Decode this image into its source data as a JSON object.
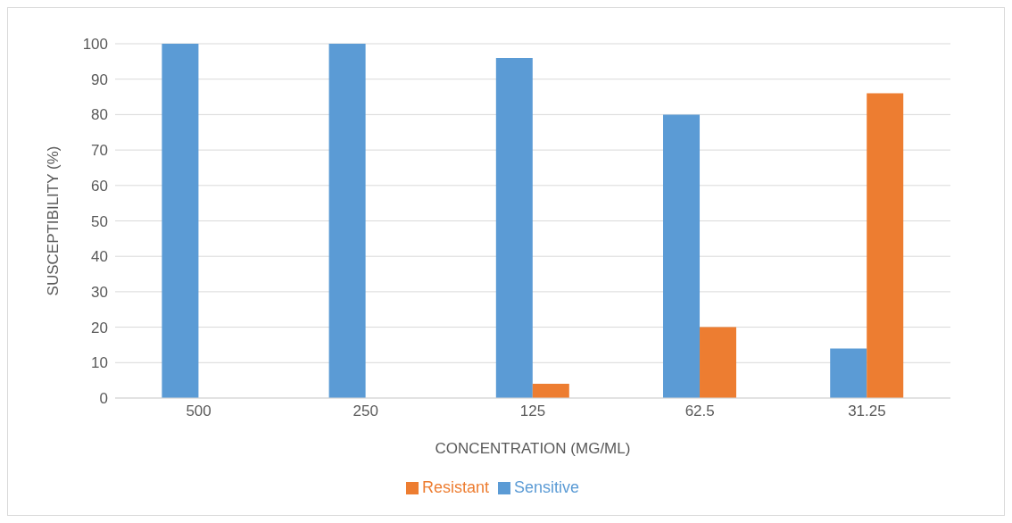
{
  "chart_data": {
    "type": "bar",
    "xlabel": "CONCENTRATION (MG/ML)",
    "ylabel": "SUSCEPTIBILITY (%)",
    "categories": [
      "500",
      "250",
      "125",
      "62.5",
      "31.25"
    ],
    "series": [
      {
        "name": "Sensitive",
        "color": "#5b9bd5",
        "values": [
          100,
          100,
          96,
          80,
          14
        ]
      },
      {
        "name": "Resistant",
        "color": "#ed7d31",
        "values": [
          0,
          0,
          4,
          20,
          86
        ]
      }
    ],
    "ylim": [
      0,
      100
    ],
    "yticks": [
      0,
      10,
      20,
      30,
      40,
      50,
      60,
      70,
      80,
      90,
      100
    ],
    "grid": "y",
    "legend": "bottom"
  }
}
